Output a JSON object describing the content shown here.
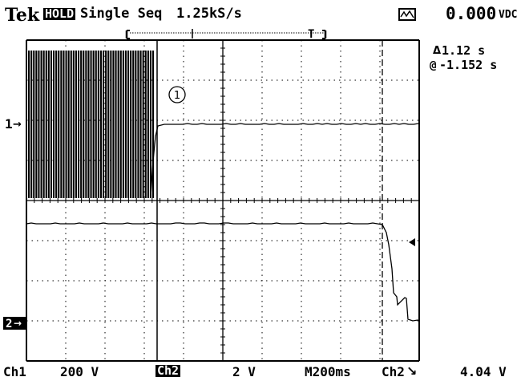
{
  "header": {
    "brand": "Tek",
    "mode_badge": "HOLD",
    "acq_mode": "Single Seq",
    "sample_rate": "1.25kS/s",
    "reading": "0.000",
    "reading_unit": "VDC"
  },
  "cursor_readout": {
    "delta_symbol": "Δ",
    "delta_value": "1.12 s",
    "at_symbol": "@",
    "at_value": "-1.152 s"
  },
  "markers": {
    "trigger": "T",
    "ch1_marker": "1",
    "ch1_arrow": "→",
    "ch2_marker": "2",
    "ch2_arrow": "→",
    "circle_label": "1"
  },
  "footer": {
    "ch1_label": "Ch1",
    "ch1_scale": "200 V",
    "ch2_label": "Ch2",
    "ch2_scale": "2 V",
    "timebase": "M200ms",
    "trigger_source": "Ch2",
    "trigger_slope": "↘",
    "trigger_level": "4.04 V"
  },
  "colors": {
    "trace": "#000000",
    "background": "#ffffff"
  }
}
